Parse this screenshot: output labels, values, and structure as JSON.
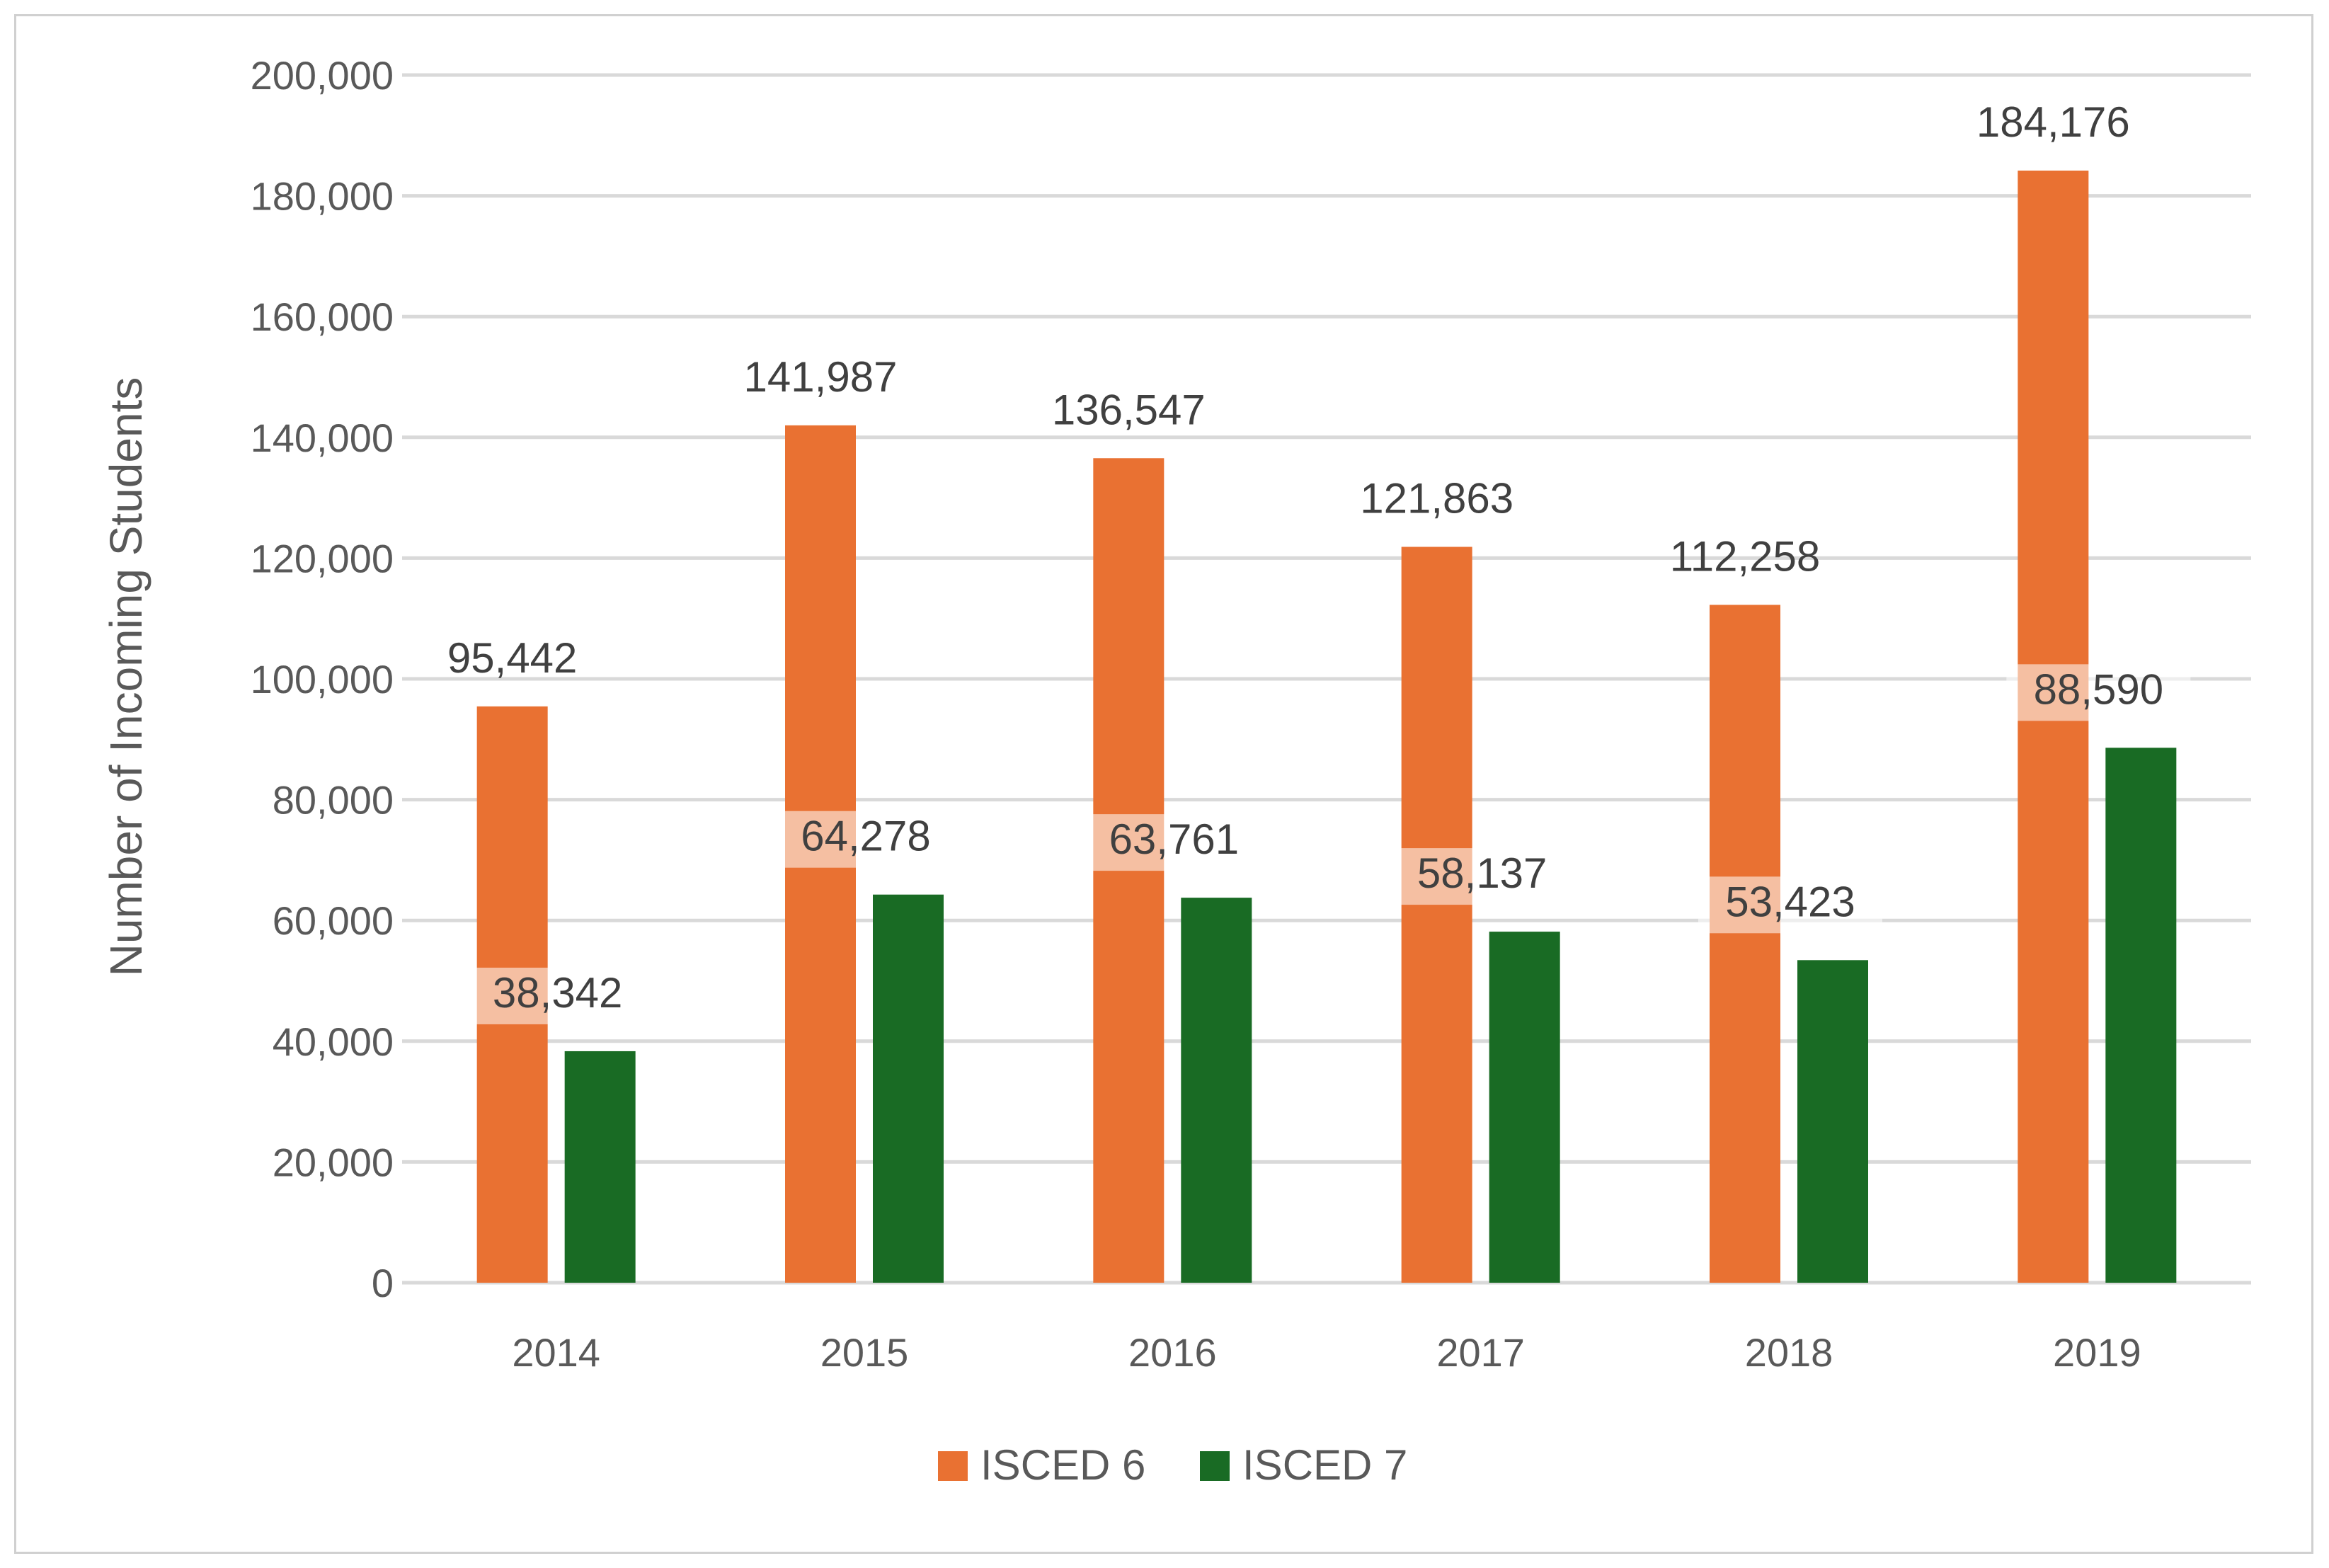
{
  "chart_data": {
    "type": "bar",
    "title": "",
    "xlabel": "",
    "ylabel": "Number of Incoming Students",
    "ylim": [
      0,
      200000
    ],
    "ytick_step": 20000,
    "categories": [
      "2014",
      "2015",
      "2016",
      "2017",
      "2018",
      "2019"
    ],
    "series": [
      {
        "name": "ISCED 6",
        "color": "#E97132",
        "values": [
          95442,
          141987,
          136547,
          121863,
          112258,
          184176
        ],
        "labels": [
          "95,442",
          "141,987",
          "136,547",
          "121,863",
          "112,258",
          "184,176"
        ]
      },
      {
        "name": "ISCED 7",
        "color": "#196B24",
        "values": [
          38342,
          64278,
          63761,
          58137,
          53423,
          88590
        ],
        "labels": [
          "38,342",
          "64,278",
          "63,761",
          "58,137",
          "53,423",
          "88,590"
        ]
      }
    ],
    "grid": true,
    "legend": "bottom"
  }
}
